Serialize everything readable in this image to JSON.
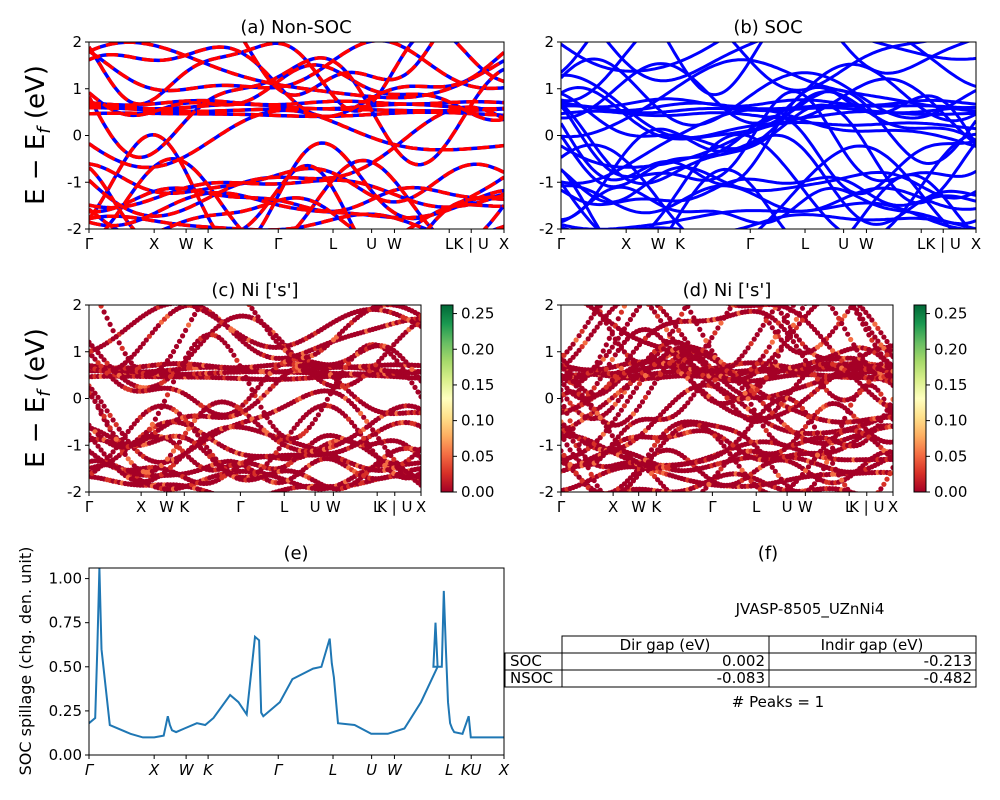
{
  "colors": {
    "nonsoc_line": "#0000ff",
    "nonsoc_dashed": "#ff0000",
    "soc_line": "#0000ff",
    "spillage_line": "#1f77b4",
    "colormap": [
      "#a50026",
      "#d73027",
      "#f46d43",
      "#fdae61",
      "#fee08b",
      "#ffffbf",
      "#d9ef8b",
      "#a6d96a",
      "#66bd63",
      "#1a9850",
      "#006837"
    ]
  },
  "ylabel_band": "E − E_f (eV)",
  "kpath_labels": [
    "Γ",
    "X",
    "W",
    "K",
    "Γ",
    "L",
    "U",
    "W",
    "L",
    "K | U",
    "X"
  ],
  "kpath_positions": [
    0,
    0.157,
    0.234,
    0.287,
    0.456,
    0.588,
    0.681,
    0.736,
    0.868,
    0.921,
    1.0
  ],
  "kpath_labels_italic": [
    "Γ",
    "X",
    "W",
    "K",
    "Γ",
    "L",
    "U",
    "W",
    "L",
    "KU",
    "X"
  ],
  "chart_data": [
    {
      "id": "a",
      "type": "line",
      "title": "(a) Non-SOC",
      "ylabel": "E − E_f (eV)",
      "ylim": [
        -2,
        2
      ],
      "yticks": [
        -2,
        -1,
        0,
        1,
        2
      ],
      "series": [
        {
          "style": "solid"
        },
        {
          "style": "dashed"
        }
      ]
    },
    {
      "id": "b",
      "type": "line",
      "title": "(b) SOC",
      "ylim": [
        -2,
        2
      ],
      "yticks": [
        -2,
        -1,
        0,
        1,
        2
      ]
    },
    {
      "id": "c",
      "type": "scatter",
      "title": "(c)  Ni ['s']",
      "ylabel": "E − E_f (eV)",
      "ylim": [
        -2,
        2
      ],
      "yticks": [
        -2,
        -1,
        0,
        1,
        2
      ],
      "colorbar_ticks": [
        "0.00",
        "0.05",
        "0.10",
        "0.15",
        "0.20",
        "0.25"
      ]
    },
    {
      "id": "d",
      "type": "scatter",
      "title": "(d) Ni ['s']",
      "ylim": [
        -2,
        2
      ],
      "yticks": [
        -2,
        -1,
        0,
        1,
        2
      ],
      "colorbar_ticks": [
        "0.00",
        "0.05",
        "0.10",
        "0.15",
        "0.20",
        "0.25"
      ]
    },
    {
      "id": "e",
      "type": "line",
      "title": "(e)",
      "ylabel": "SOC spillage (chg. den. unit)",
      "ylim": [
        0,
        1.06
      ],
      "yticks": [
        "0.00",
        "0.25",
        "0.50",
        "0.75",
        "1.00"
      ],
      "x": [
        0,
        0.015,
        0.02,
        0.025,
        0.03,
        0.05,
        0.1,
        0.13,
        0.157,
        0.18,
        0.19,
        0.195,
        0.2,
        0.21,
        0.23,
        0.26,
        0.28,
        0.3,
        0.34,
        0.36,
        0.38,
        0.4,
        0.41,
        0.415,
        0.42,
        0.43,
        0.46,
        0.49,
        0.54,
        0.56,
        0.58,
        0.585,
        0.59,
        0.6,
        0.64,
        0.68,
        0.72,
        0.76,
        0.8,
        0.84,
        0.83,
        0.835,
        0.84,
        0.845,
        0.85,
        0.855,
        0.86,
        0.865,
        0.87,
        0.875,
        0.88,
        0.9,
        0.915,
        0.92,
        0.95,
        1.0
      ],
      "values": [
        0.18,
        0.21,
        0.6,
        1.06,
        0.6,
        0.17,
        0.12,
        0.1,
        0.1,
        0.11,
        0.22,
        0.17,
        0.14,
        0.13,
        0.15,
        0.18,
        0.17,
        0.21,
        0.34,
        0.3,
        0.23,
        0.67,
        0.65,
        0.24,
        0.22,
        0.24,
        0.3,
        0.43,
        0.49,
        0.5,
        0.66,
        0.52,
        0.44,
        0.18,
        0.17,
        0.12,
        0.12,
        0.15,
        0.3,
        0.5,
        0.5,
        0.75,
        0.5,
        0.5,
        0.5,
        0.93,
        0.6,
        0.3,
        0.18,
        0.15,
        0.13,
        0.12,
        0.22,
        0.1,
        0.1,
        0.1
      ]
    },
    {
      "id": "f",
      "type": "table",
      "title": "(f)",
      "material": "JVASP-8505_UZnNi4",
      "columns": [
        "Dir gap (eV)",
        "Indir gap (eV)"
      ],
      "rows": [
        {
          "label": "SOC",
          "values": [
            "0.002",
            "-0.213"
          ]
        },
        {
          "label": "NSOC",
          "values": [
            "-0.083",
            "-0.482"
          ]
        }
      ],
      "footer": "# Peaks = 1"
    }
  ]
}
